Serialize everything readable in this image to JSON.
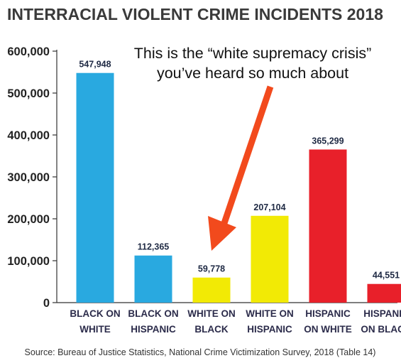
{
  "chart_data": {
    "type": "bar",
    "title": "INTERRACIAL VIOLENT CRIME INCIDENTS 2018",
    "categories": [
      [
        "BLACK ON",
        "WHITE"
      ],
      [
        "BLACK ON",
        "HISPANIC"
      ],
      [
        "WHITE ON",
        "BLACK"
      ],
      [
        "WHITE ON",
        "HISPANIC"
      ],
      [
        "HISPANIC",
        "ON WHITE"
      ],
      [
        "HISPANIC",
        "ON BLACK"
      ]
    ],
    "values": [
      547948,
      112365,
      59778,
      207104,
      365299,
      44551
    ],
    "value_labels": [
      "547,948",
      "112,365",
      "59,778",
      "207,104",
      "365,299",
      "44,551"
    ],
    "bar_colors": [
      "#29a9e0",
      "#29a9e0",
      "#f2ea05",
      "#f2ea05",
      "#e8202a",
      "#e8202a"
    ],
    "ylim": [
      0,
      600000
    ],
    "yticks": [
      0,
      100000,
      200000,
      300000,
      400000,
      500000,
      600000
    ],
    "ytick_labels": [
      "0",
      "100,000",
      "200,000",
      "300,000",
      "400,000",
      "500,000",
      "600,000"
    ],
    "grid": false,
    "annotation": {
      "lines": [
        "This is the “white supremacy crisis”",
        "you’ve heard so much about"
      ],
      "arrow_color": "#f24a1d",
      "target_category": "WHITE ON BLACK"
    },
    "source": "Source: Bureau of Justice Statistics, National Crime Victimization Survey, 2018 (Table 14)"
  }
}
